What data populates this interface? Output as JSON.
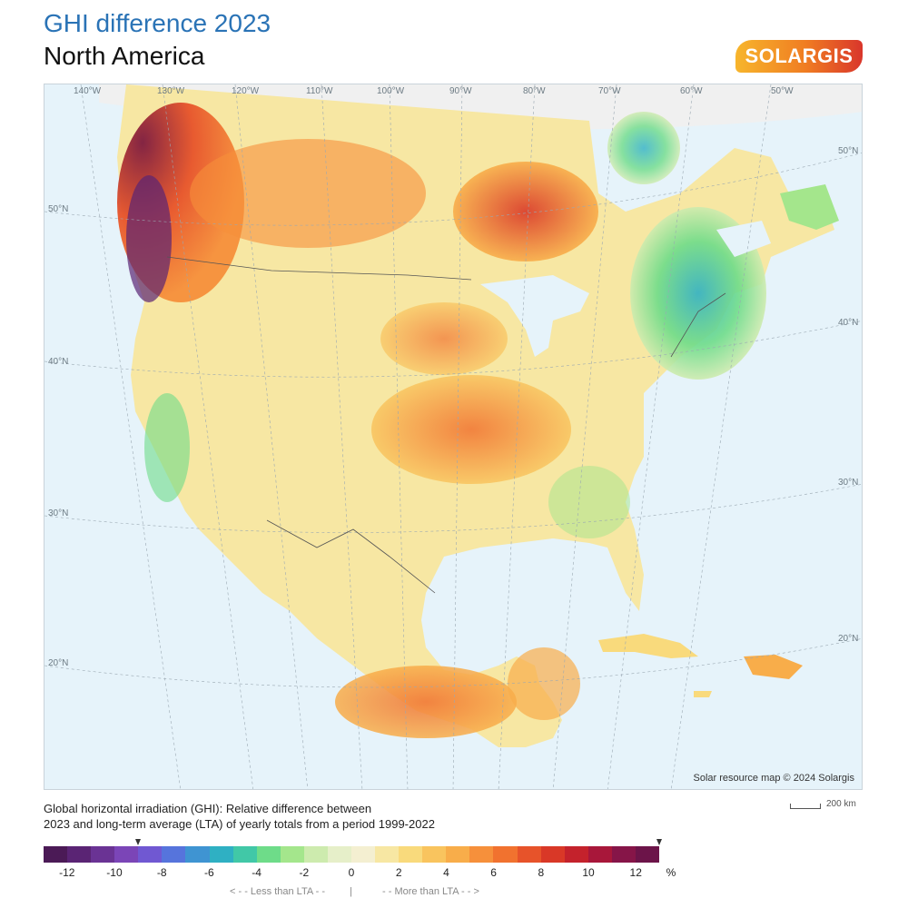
{
  "header": {
    "title": "GHI difference 2023",
    "subtitle": "North America",
    "logo_text": "SOLARGIS"
  },
  "map": {
    "lon_labels": [
      "140°W",
      "130°W",
      "120°W",
      "110°W",
      "100°W",
      "90°W",
      "80°W",
      "70°W",
      "60°W",
      "50°W"
    ],
    "lat_labels_left": [
      "50°N",
      "40°N",
      "30°N",
      "20°N"
    ],
    "lat_labels_right": [
      "50°N",
      "40°N",
      "30°N",
      "20°N"
    ],
    "credit": "Solar resource map © 2024 Solargis",
    "scale_label": "200 km",
    "water_color": "#e6f3fa",
    "no_data_color": "#f0f0f0"
  },
  "description": {
    "line1": "Global horizontal irradiation (GHI): Relative difference between",
    "line2": "2023 and long-term average (LTA) of yearly totals from a period 1999-2022"
  },
  "legend": {
    "colors": [
      "#4b1a56",
      "#5a2474",
      "#6a3394",
      "#7b45b7",
      "#7058d2",
      "#5674dc",
      "#3f94d2",
      "#2fb0c3",
      "#41c8a7",
      "#6edc89",
      "#a4e68c",
      "#cdebae",
      "#e6efc9",
      "#f4efd1",
      "#f7e7a3",
      "#f9da7c",
      "#f9c45e",
      "#f8ad4a",
      "#f6903b",
      "#f1722f",
      "#e7532a",
      "#d93827",
      "#c4222c",
      "#a8173a",
      "#861548",
      "#6c1449"
    ],
    "ticks": [
      {
        "label": "-12",
        "pos": 0.038
      },
      {
        "label": "-10",
        "pos": 0.115
      },
      {
        "label": "-8",
        "pos": 0.192
      },
      {
        "label": "-6",
        "pos": 0.269
      },
      {
        "label": "-4",
        "pos": 0.346
      },
      {
        "label": "-2",
        "pos": 0.423
      },
      {
        "label": "0",
        "pos": 0.5
      },
      {
        "label": "2",
        "pos": 0.577
      },
      {
        "label": "4",
        "pos": 0.654
      },
      {
        "label": "6",
        "pos": 0.731
      },
      {
        "label": "8",
        "pos": 0.808
      },
      {
        "label": "10",
        "pos": 0.885
      },
      {
        "label": "12",
        "pos": 0.962
      }
    ],
    "unit": "%",
    "less_than": "< - -  Less than LTA  - -",
    "separator": "|",
    "more_than": "- -  More than LTA  - - >",
    "marker_positions": [
      0.154,
      1.0
    ]
  }
}
